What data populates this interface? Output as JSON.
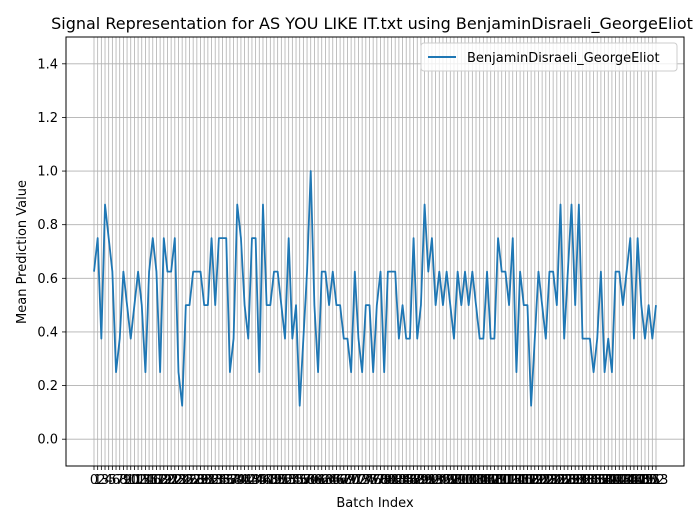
{
  "chart_data": {
    "type": "line",
    "title": "Signal Representation for AS YOU LIKE IT.txt using BenjaminDisraeli_GeorgeEliot",
    "xlabel": "Batch Index",
    "ylabel": "Mean Prediction Value",
    "ylim": [
      -0.1,
      1.5
    ],
    "yticks": [
      "0.0",
      "0.2",
      "0.4",
      "0.6",
      "0.8",
      "1.0",
      "1.2",
      "1.4"
    ],
    "x_tick_step": 1,
    "grid": true,
    "legend_position": "top-right",
    "series": [
      {
        "name": "BenjaminDisraeli_GeorgeEliot",
        "color": "#1f77b4",
        "values": [
          0.625,
          0.75,
          0.375,
          0.875,
          0.75,
          0.625,
          0.25,
          0.375,
          0.625,
          0.5,
          0.375,
          0.5,
          0.625,
          0.5,
          0.25,
          0.625,
          0.75,
          0.625,
          0.25,
          0.75,
          0.625,
          0.625,
          0.75,
          0.25,
          0.125,
          0.5,
          0.5,
          0.625,
          0.625,
          0.625,
          0.5,
          0.5,
          0.75,
          0.5,
          0.75,
          0.75,
          0.75,
          0.25,
          0.375,
          0.875,
          0.75,
          0.5,
          0.375,
          0.75,
          0.75,
          0.25,
          0.875,
          0.5,
          0.5,
          0.625,
          0.625,
          0.5,
          0.375,
          0.75,
          0.375,
          0.5,
          0.125,
          0.375,
          0.625,
          1.0,
          0.5,
          0.25,
          0.625,
          0.625,
          0.5,
          0.625,
          0.5,
          0.5,
          0.375,
          0.375,
          0.25,
          0.625,
          0.375,
          0.25,
          0.5,
          0.5,
          0.25,
          0.5,
          0.625,
          0.25,
          0.625,
          0.625,
          0.625,
          0.375,
          0.5,
          0.375,
          0.375,
          0.75,
          0.375,
          0.5,
          0.875,
          0.625,
          0.75,
          0.5,
          0.625,
          0.5,
          0.625,
          0.5,
          0.375,
          0.625,
          0.5,
          0.625,
          0.5,
          0.625,
          0.5,
          0.375,
          0.375,
          0.625,
          0.375,
          0.375,
          0.75,
          0.625,
          0.625,
          0.5,
          0.75,
          0.25,
          0.625,
          0.5,
          0.5,
          0.125,
          0.375,
          0.625,
          0.5,
          0.375,
          0.625,
          0.625,
          0.5,
          0.875,
          0.375,
          0.625,
          0.875,
          0.5,
          0.875,
          0.375,
          0.375,
          0.375,
          0.25,
          0.375,
          0.625,
          0.25,
          0.375,
          0.25,
          0.625,
          0.625,
          0.5,
          0.625,
          0.75,
          0.375,
          0.75,
          0.5,
          0.375,
          0.5,
          0.375,
          0.5
        ]
      }
    ]
  }
}
